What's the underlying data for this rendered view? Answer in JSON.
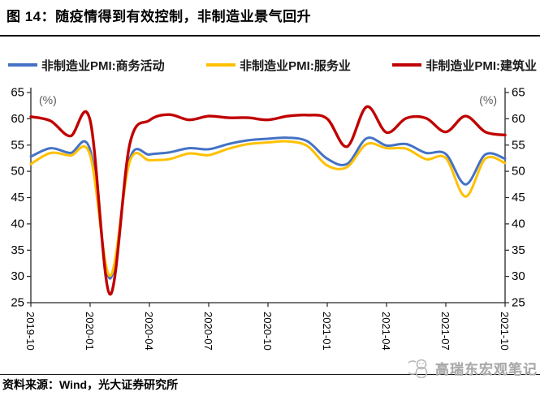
{
  "header": {
    "title": "图 14：随疫情得到有效控制，非制造业景气回升"
  },
  "footer": {
    "source": "资料来源：Wind，光大证券研究所",
    "watermark": "高瑞东宏观笔记"
  },
  "chart_data": {
    "type": "line",
    "unit_label_left": "(%)",
    "unit_label_right": "(%)",
    "ylim": [
      25,
      65
    ],
    "y_ticks": [
      65,
      60,
      55,
      50,
      45,
      40,
      35,
      30,
      25
    ],
    "grid": "off",
    "legend_position": "top",
    "x": [
      "2019-10",
      "2019-11",
      "2019-12",
      "2020-01",
      "2020-02",
      "2020-03",
      "2020-04",
      "2020-05",
      "2020-06",
      "2020-07",
      "2020-08",
      "2020-09",
      "2020-10",
      "2020-11",
      "2020-12",
      "2021-01",
      "2021-02",
      "2021-03",
      "2021-04",
      "2021-05",
      "2021-06",
      "2021-07",
      "2021-08",
      "2021-09",
      "2021-10"
    ],
    "x_tick_labels": [
      "2019-10",
      "2020-01",
      "2020-04",
      "2020-07",
      "2020-10",
      "2021-01",
      "2021-04",
      "2021-07",
      "2021-10"
    ],
    "axis_color": "#262626",
    "series": [
      {
        "name": "非制造业PMI:商务活动",
        "color": "#4472C4",
        "values": [
          52.8,
          54.4,
          53.5,
          54.1,
          29.6,
          52.3,
          53.2,
          53.6,
          54.4,
          54.2,
          55.2,
          55.9,
          56.2,
          56.4,
          55.7,
          52.4,
          51.4,
          56.3,
          54.9,
          55.2,
          53.5,
          53.3,
          47.5,
          53.2,
          52.4
        ]
      },
      {
        "name": "非制造业PMI:服务业",
        "color": "#FFC000",
        "values": [
          51.4,
          53.5,
          53.0,
          53.1,
          30.1,
          51.8,
          52.1,
          52.3,
          53.4,
          53.1,
          54.3,
          55.2,
          55.5,
          55.7,
          54.8,
          51.1,
          50.8,
          55.2,
          54.4,
          54.3,
          52.3,
          52.5,
          45.2,
          52.4,
          51.6
        ]
      },
      {
        "name": "非制造业PMI:建筑业",
        "color": "#C00000",
        "values": [
          60.4,
          59.6,
          56.7,
          59.7,
          26.6,
          55.1,
          59.7,
          60.8,
          59.8,
          60.5,
          60.2,
          60.2,
          59.8,
          60.5,
          60.7,
          60.0,
          54.7,
          62.3,
          57.4,
          60.1,
          60.1,
          57.5,
          60.5,
          57.5,
          56.9
        ]
      }
    ]
  }
}
